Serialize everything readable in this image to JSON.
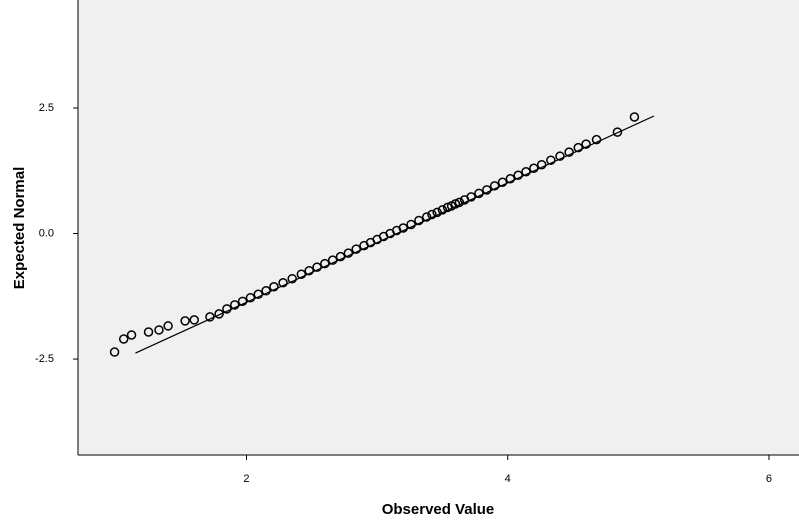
{
  "chart_data": {
    "type": "scatter",
    "x_label": "Observed Value",
    "y_label": "Expected Normal",
    "xlim": [
      0.71,
      6.23
    ],
    "ylim": [
      -4.41,
      4.65
    ],
    "xticks": [
      2,
      4,
      6
    ],
    "yticks": [
      -2.5,
      {
        "value": 0,
        "label": "0.0"
      },
      2.5
    ],
    "series": [
      {
        "color": "#000000",
        "x": [
          0.99,
          1.06,
          1.12,
          1.25,
          1.33,
          1.4,
          1.53,
          1.6,
          1.72,
          1.79,
          1.85,
          1.91,
          1.97,
          2.03,
          2.09,
          2.15,
          2.21,
          2.28,
          2.35,
          2.42,
          2.48,
          2.54,
          2.6,
          2.66,
          2.72,
          2.78,
          2.84,
          2.9,
          2.95,
          3.0,
          3.05,
          3.1,
          3.15,
          3.2,
          3.26,
          3.32,
          3.38,
          3.42,
          3.46,
          3.5,
          3.54,
          3.57,
          3.6,
          3.63,
          3.67,
          3.72,
          3.78,
          3.84,
          3.9,
          3.96,
          4.02,
          4.08,
          4.14,
          4.2,
          4.26,
          4.33,
          4.4,
          4.47,
          4.54,
          4.6,
          4.68,
          4.84,
          4.97
        ],
        "values": [
          -2.36,
          -2.1,
          -2.02,
          -1.96,
          -1.92,
          -1.84,
          -1.74,
          -1.72,
          -1.66,
          -1.6,
          -1.5,
          -1.42,
          -1.35,
          -1.28,
          -1.21,
          -1.14,
          -1.06,
          -0.98,
          -0.9,
          -0.81,
          -0.74,
          -0.67,
          -0.6,
          -0.53,
          -0.46,
          -0.39,
          -0.31,
          -0.24,
          -0.18,
          -0.12,
          -0.06,
          0.0,
          0.06,
          0.11,
          0.18,
          0.26,
          0.33,
          0.38,
          0.42,
          0.47,
          0.52,
          0.55,
          0.59,
          0.62,
          0.67,
          0.73,
          0.8,
          0.87,
          0.95,
          1.02,
          1.09,
          1.16,
          1.23,
          1.3,
          1.37,
          1.46,
          1.54,
          1.62,
          1.71,
          1.78,
          1.87,
          2.02,
          2.32
        ]
      }
    ],
    "reference_line": {
      "color": "#000000",
      "x": [
        1.15,
        5.12
      ],
      "values": [
        -2.38,
        2.34
      ]
    }
  }
}
